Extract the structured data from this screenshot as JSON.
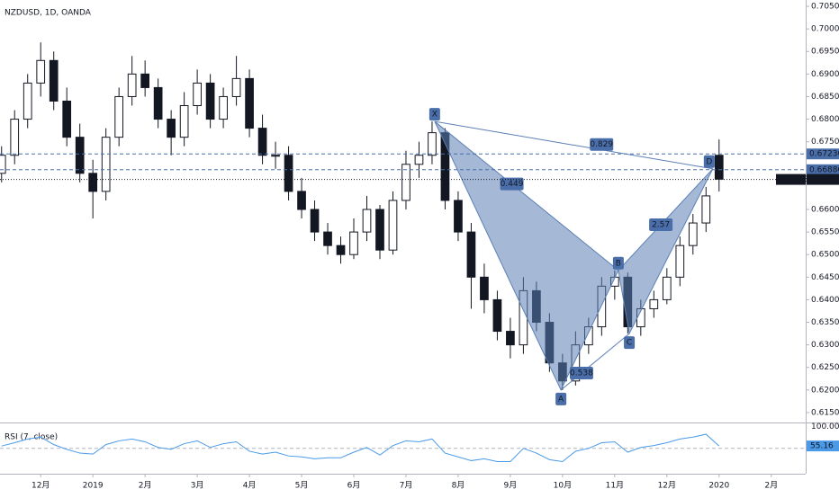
{
  "chart_data": {
    "type": "candlestick",
    "title": "NZDUSD, 1D, OANDA",
    "up_color": "#ffffff",
    "down_color": "#131722",
    "wick_color": "#131722",
    "x": [
      -0.75,
      -0.5,
      -0.25,
      0,
      0.25,
      0.5,
      0.75,
      1,
      1.25,
      1.5,
      1.75,
      2,
      2.25,
      2.5,
      2.75,
      3,
      3.25,
      3.5,
      3.75,
      4,
      4.25,
      4.5,
      4.75,
      5,
      5.25,
      5.5,
      5.75,
      6,
      6.25,
      6.5,
      6.75,
      7,
      7.25,
      7.5,
      7.75,
      8,
      8.25,
      8.5,
      8.75,
      9,
      9.25,
      9.5,
      9.75,
      10,
      10.25,
      10.5,
      10.75,
      11,
      11.25,
      11.5,
      11.75,
      12,
      12.25,
      12.5,
      12.75,
      13
    ],
    "ohlc": [
      [
        0.668,
        0.674,
        0.666,
        0.672
      ],
      [
        0.672,
        0.682,
        0.67,
        0.68
      ],
      [
        0.68,
        0.69,
        0.678,
        0.688
      ],
      [
        0.688,
        0.697,
        0.685,
        0.693
      ],
      [
        0.693,
        0.695,
        0.682,
        0.684
      ],
      [
        0.684,
        0.687,
        0.674,
        0.676
      ],
      [
        0.676,
        0.679,
        0.666,
        0.668
      ],
      [
        0.668,
        0.671,
        0.658,
        0.664
      ],
      [
        0.664,
        0.678,
        0.662,
        0.676
      ],
      [
        0.676,
        0.687,
        0.674,
        0.685
      ],
      [
        0.685,
        0.694,
        0.683,
        0.69
      ],
      [
        0.69,
        0.693,
        0.685,
        0.687
      ],
      [
        0.687,
        0.689,
        0.678,
        0.68
      ],
      [
        0.68,
        0.682,
        0.672,
        0.676
      ],
      [
        0.676,
        0.686,
        0.674,
        0.683
      ],
      [
        0.683,
        0.691,
        0.681,
        0.688
      ],
      [
        0.688,
        0.69,
        0.678,
        0.68
      ],
      [
        0.68,
        0.687,
        0.678,
        0.685
      ],
      [
        0.685,
        0.694,
        0.683,
        0.689
      ],
      [
        0.689,
        0.691,
        0.676,
        0.678
      ],
      [
        0.678,
        0.681,
        0.67,
        0.672
      ],
      [
        0.672,
        0.675,
        0.669,
        0.672
      ],
      [
        0.672,
        0.674,
        0.662,
        0.664
      ],
      [
        0.664,
        0.667,
        0.658,
        0.66
      ],
      [
        0.66,
        0.662,
        0.653,
        0.655
      ],
      [
        0.655,
        0.657,
        0.65,
        0.652
      ],
      [
        0.652,
        0.654,
        0.648,
        0.65
      ],
      [
        0.65,
        0.658,
        0.649,
        0.655
      ],
      [
        0.655,
        0.663,
        0.653,
        0.66
      ],
      [
        0.66,
        0.661,
        0.649,
        0.651
      ],
      [
        0.651,
        0.664,
        0.65,
        0.662
      ],
      [
        0.662,
        0.673,
        0.66,
        0.67
      ],
      [
        0.67,
        0.675,
        0.667,
        0.672
      ],
      [
        0.672,
        0.6795,
        0.67,
        0.677
      ],
      [
        0.677,
        0.678,
        0.66,
        0.662
      ],
      [
        0.662,
        0.664,
        0.653,
        0.655
      ],
      [
        0.655,
        0.657,
        0.638,
        0.645
      ],
      [
        0.645,
        0.648,
        0.637,
        0.64
      ],
      [
        0.64,
        0.642,
        0.631,
        0.633
      ],
      [
        0.633,
        0.636,
        0.627,
        0.63
      ],
      [
        0.63,
        0.645,
        0.628,
        0.642
      ],
      [
        0.642,
        0.644,
        0.633,
        0.635
      ],
      [
        0.635,
        0.637,
        0.624,
        0.626
      ],
      [
        0.626,
        0.628,
        0.62,
        0.622
      ],
      [
        0.622,
        0.633,
        0.621,
        0.63
      ],
      [
        0.63,
        0.636,
        0.628,
        0.634
      ],
      [
        0.634,
        0.645,
        0.632,
        0.643
      ],
      [
        0.643,
        0.6465,
        0.64,
        0.645
      ],
      [
        0.645,
        0.646,
        0.6325,
        0.634
      ],
      [
        0.634,
        0.64,
        0.632,
        0.638
      ],
      [
        0.638,
        0.642,
        0.636,
        0.64
      ],
      [
        0.64,
        0.647,
        0.639,
        0.645
      ],
      [
        0.645,
        0.654,
        0.643,
        0.652
      ],
      [
        0.652,
        0.659,
        0.65,
        0.657
      ],
      [
        0.657,
        0.665,
        0.655,
        0.663
      ],
      [
        0.672,
        0.6755,
        0.664,
        0.6667
      ]
    ],
    "xlim": [
      -0.78,
      14.66
    ],
    "xticks": [
      {
        "value": 0,
        "label": "12月"
      },
      {
        "value": 1,
        "label": "2019"
      },
      {
        "value": 2,
        "label": "2月"
      },
      {
        "value": 3,
        "label": "3月"
      },
      {
        "value": 4,
        "label": "4月"
      },
      {
        "value": 5,
        "label": "5月"
      },
      {
        "value": 6,
        "label": "6月"
      },
      {
        "value": 7,
        "label": "7月"
      },
      {
        "value": 8,
        "label": "8月"
      },
      {
        "value": 9,
        "label": "9月"
      },
      {
        "value": 10,
        "label": "10月"
      },
      {
        "value": 11,
        "label": "11月"
      },
      {
        "value": 12,
        "label": "12月"
      },
      {
        "value": 13,
        "label": "2020"
      },
      {
        "value": 14,
        "label": "2月"
      }
    ],
    "ylim": [
      0.6128,
      0.7064
    ],
    "yticks": [
      {
        "value": 0.705,
        "label": "0.70500"
      },
      {
        "value": 0.7,
        "label": "0.70000"
      },
      {
        "value": 0.695,
        "label": "0.69500"
      },
      {
        "value": 0.69,
        "label": "0.69000"
      },
      {
        "value": 0.685,
        "label": "0.68500"
      },
      {
        "value": 0.68,
        "label": "0.68000"
      },
      {
        "value": 0.675,
        "label": "0.67500"
      },
      {
        "value": 0.66,
        "label": "0.66000"
      },
      {
        "value": 0.655,
        "label": "0.65500"
      },
      {
        "value": 0.65,
        "label": "0.65000"
      },
      {
        "value": 0.645,
        "label": "0.64500"
      },
      {
        "value": 0.64,
        "label": "0.64000"
      },
      {
        "value": 0.635,
        "label": "0.63500"
      },
      {
        "value": 0.63,
        "label": "0.63000"
      },
      {
        "value": 0.625,
        "label": "0.62500"
      },
      {
        "value": 0.62,
        "label": "0.62000"
      },
      {
        "value": 0.615,
        "label": "0.61500"
      }
    ],
    "price_lines": [
      {
        "value": 0.6723,
        "label": "0.67230",
        "color": "#4a6ea9",
        "style": "dashed"
      },
      {
        "value": 0.6688,
        "label": "0.66880",
        "color": "#4a6ea9",
        "style": "dashed"
      },
      {
        "value": 0.66665,
        "label": "0.66665",
        "color": "#131722",
        "style": "dotted",
        "symbol": "NZDUSD"
      }
    ],
    "pattern": {
      "color": "#5b7fb5",
      "points": [
        {
          "label": "X",
          "x": 7.55,
          "y": 0.6795
        },
        {
          "label": "A",
          "x": 9.97,
          "y": 0.62
        },
        {
          "label": "B",
          "x": 11.07,
          "y": 0.6465
        },
        {
          "label": "C",
          "x": 11.28,
          "y": 0.6325
        },
        {
          "label": "D",
          "x": 12.88,
          "y": 0.669
        }
      ],
      "ratios": [
        "0.829",
        "0.449",
        "0.538",
        "2.57"
      ]
    },
    "rsi": {
      "title": "RSI (7, close)",
      "color": "#4a9ae8",
      "values": [
        55,
        62,
        70,
        74,
        58,
        48,
        40,
        38,
        58,
        66,
        70,
        64,
        52,
        48,
        60,
        66,
        52,
        60,
        64,
        44,
        38,
        42,
        34,
        32,
        28,
        30,
        30,
        42,
        52,
        36,
        56,
        66,
        64,
        70,
        40,
        32,
        24,
        28,
        22,
        22,
        50,
        40,
        26,
        22,
        44,
        50,
        62,
        64,
        42,
        52,
        56,
        62,
        70,
        74,
        80,
        55.16
      ],
      "value_label": "55.16",
      "ylim": [
        0,
        105
      ],
      "yticks": [
        {
          "value": 100,
          "label": "100.00"
        }
      ],
      "level": 50
    }
  }
}
